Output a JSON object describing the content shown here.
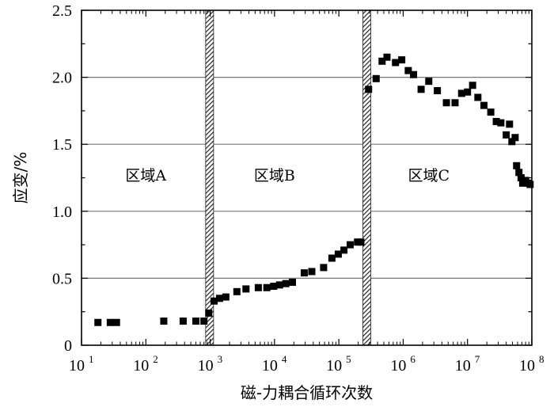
{
  "chart_data": {
    "type": "scatter",
    "xlabel": "磁-力耦合循环次数",
    "ylabel": "应变/%",
    "x_scale": "log",
    "xlim": [
      10,
      100000000
    ],
    "ylim": [
      0,
      2.5
    ],
    "x_ticks": [
      {
        "value": 10,
        "base": "10",
        "exp": "1"
      },
      {
        "value": 100,
        "base": "10",
        "exp": "2"
      },
      {
        "value": 1000,
        "base": "10",
        "exp": "3"
      },
      {
        "value": 10000,
        "base": "10",
        "exp": "4"
      },
      {
        "value": 100000,
        "base": "10",
        "exp": "5"
      },
      {
        "value": 1000000,
        "base": "10",
        "exp": "6"
      },
      {
        "value": 10000000,
        "base": "10",
        "exp": "7"
      },
      {
        "value": 100000000,
        "base": "10",
        "exp": "8"
      }
    ],
    "y_ticks": [
      {
        "value": 0,
        "label": "0"
      },
      {
        "value": 0.5,
        "label": "0.5"
      },
      {
        "value": 1.0,
        "label": "1.0"
      },
      {
        "value": 1.5,
        "label": "1.5"
      },
      {
        "value": 2.0,
        "label": "2.0"
      },
      {
        "value": 2.5,
        "label": "2.5"
      }
    ],
    "grid": "horizontal",
    "boundaries": [
      900,
      250000
    ],
    "regions": [
      {
        "label": "区域A",
        "x_center": 100
      },
      {
        "label": "区域B",
        "x_center": 10000
      },
      {
        "label": "区域C",
        "x_center": 2500000
      }
    ],
    "marker": "square",
    "marker_color": "#000000",
    "points": [
      [
        18,
        0.17
      ],
      [
        28,
        0.17
      ],
      [
        35,
        0.17
      ],
      [
        190,
        0.18
      ],
      [
        380,
        0.18
      ],
      [
        600,
        0.18
      ],
      [
        800,
        0.18
      ],
      [
        950,
        0.24
      ],
      [
        1150,
        0.33
      ],
      [
        1400,
        0.35
      ],
      [
        1750,
        0.36
      ],
      [
        2600,
        0.4
      ],
      [
        3600,
        0.42
      ],
      [
        5600,
        0.43
      ],
      [
        7600,
        0.43
      ],
      [
        9700,
        0.44
      ],
      [
        12000,
        0.45
      ],
      [
        15000,
        0.46
      ],
      [
        19000,
        0.47
      ],
      [
        29000,
        0.54
      ],
      [
        38000,
        0.55
      ],
      [
        58000,
        0.58
      ],
      [
        78000,
        0.65
      ],
      [
        98000,
        0.68
      ],
      [
        120000,
        0.71
      ],
      [
        150000,
        0.75
      ],
      [
        195000,
        0.77
      ],
      [
        220000,
        0.77
      ],
      [
        290000,
        1.91
      ],
      [
        380000,
        1.99
      ],
      [
        470000,
        2.12
      ],
      [
        560000,
        2.15
      ],
      [
        760000,
        2.11
      ],
      [
        950000,
        2.13
      ],
      [
        1200000,
        2.05
      ],
      [
        1450000,
        2.02
      ],
      [
        1900000,
        1.91
      ],
      [
        2500000,
        1.97
      ],
      [
        3400000,
        1.9
      ],
      [
        4700000,
        1.81
      ],
      [
        6400000,
        1.81
      ],
      [
        8100000,
        1.88
      ],
      [
        10000000,
        1.89
      ],
      [
        12000000,
        1.94
      ],
      [
        14500000,
        1.85
      ],
      [
        18000000,
        1.79
      ],
      [
        23000000,
        1.74
      ],
      [
        28000000,
        1.67
      ],
      [
        33000000,
        1.66
      ],
      [
        40000000,
        1.57
      ],
      [
        45000000,
        1.65
      ],
      [
        49000000,
        1.52
      ],
      [
        55000000,
        1.55
      ],
      [
        58000000,
        1.34
      ],
      [
        63000000,
        1.29
      ],
      [
        68000000,
        1.25
      ],
      [
        72000000,
        1.21
      ],
      [
        80000000,
        1.23
      ],
      [
        87000000,
        1.21
      ],
      [
        94000000,
        1.2
      ]
    ]
  }
}
